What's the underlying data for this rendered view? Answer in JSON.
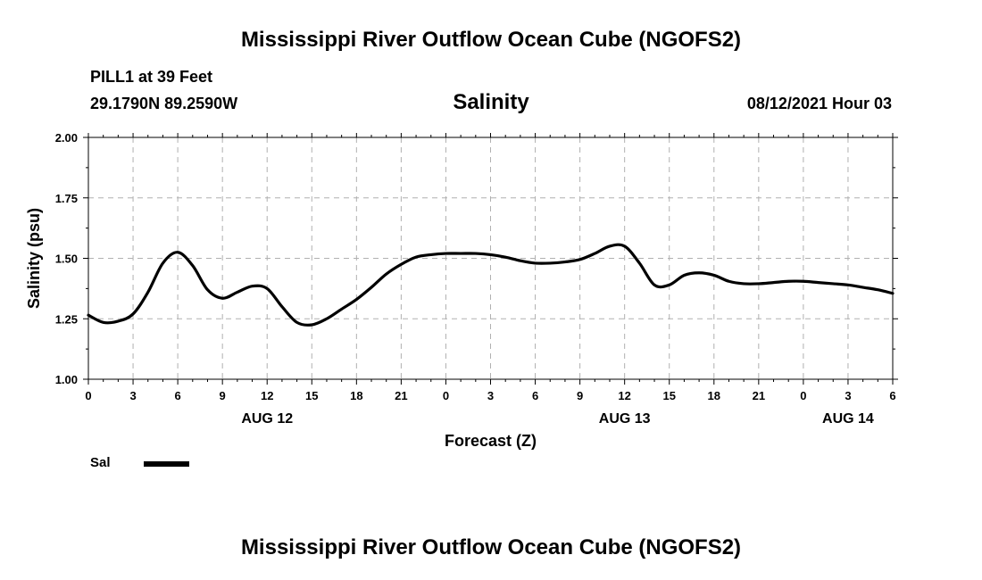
{
  "header": {
    "title_top": "Mississippi River Outflow Ocean Cube (NGOFS2)",
    "station": "PILL1 at 39 Feet",
    "coords": "29.1790N  89.2590W",
    "datetime": "08/12/2021 Hour 03",
    "title_bottom": "Mississippi River Outflow Ocean Cube (NGOFS2)"
  },
  "legend": {
    "label": "Sal"
  },
  "colors": {
    "line": "#000000",
    "grid": "#b0b0b0"
  },
  "chart_data": {
    "type": "line",
    "title": "Salinity",
    "xlabel": "Forecast (Z)",
    "ylabel": "Salinity (psu)",
    "xlim": [
      0,
      54
    ],
    "ylim": [
      1.0,
      2.0
    ],
    "yticks": [
      "1.00",
      "1.25",
      "1.50",
      "1.75",
      "2.00"
    ],
    "ytick_values": [
      1.0,
      1.25,
      1.5,
      1.75,
      2.0
    ],
    "xtick_labels": [
      "0",
      "3",
      "6",
      "9",
      "12",
      "15",
      "18",
      "21",
      "0",
      "3",
      "6",
      "9",
      "12",
      "15",
      "18",
      "21",
      "0",
      "3",
      "6"
    ],
    "xtick_hours": [
      0,
      3,
      6,
      9,
      12,
      15,
      18,
      21,
      24,
      27,
      30,
      33,
      36,
      39,
      42,
      45,
      48,
      51,
      54
    ],
    "date_labels": [
      {
        "label": "AUG 12",
        "hour": 12
      },
      {
        "label": "AUG 13",
        "hour": 36
      },
      {
        "label": "AUG 14",
        "hour": 51
      }
    ],
    "grid": true,
    "series": [
      {
        "name": "Sal",
        "x": [
          0,
          1,
          2,
          3,
          4,
          5,
          6,
          7,
          8,
          9,
          10,
          11,
          12,
          13,
          14,
          15,
          16,
          17,
          18,
          19,
          20,
          21,
          22,
          23,
          24,
          25,
          26,
          27,
          28,
          29,
          30,
          31,
          32,
          33,
          34,
          35,
          36,
          37,
          38,
          39,
          40,
          41,
          42,
          43,
          44,
          45,
          46,
          47,
          48,
          49,
          50,
          51,
          52,
          53,
          54
        ],
        "values": [
          1.265,
          1.235,
          1.24,
          1.27,
          1.36,
          1.48,
          1.525,
          1.47,
          1.37,
          1.335,
          1.36,
          1.385,
          1.375,
          1.3,
          1.235,
          1.225,
          1.25,
          1.29,
          1.33,
          1.38,
          1.435,
          1.475,
          1.505,
          1.515,
          1.52,
          1.52,
          1.52,
          1.515,
          1.505,
          1.49,
          1.48,
          1.48,
          1.485,
          1.495,
          1.52,
          1.55,
          1.55,
          1.48,
          1.39,
          1.39,
          1.43,
          1.44,
          1.43,
          1.405,
          1.395,
          1.395,
          1.4,
          1.405,
          1.405,
          1.4,
          1.395,
          1.39,
          1.38,
          1.37,
          1.355
        ]
      }
    ]
  }
}
